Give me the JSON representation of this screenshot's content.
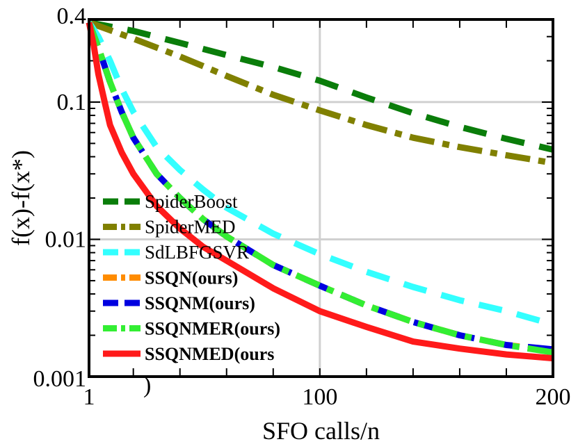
{
  "chart_data": {
    "type": "line",
    "xlabel": "SFO calls/n",
    "ylabel": "f(x)-f(x*)",
    "xlim": [
      1,
      200
    ],
    "ylim": [
      0.001,
      0.4
    ],
    "yscale": "log",
    "grid": true,
    "legend_position": "left",
    "x_ticks": [
      {
        "value": 1,
        "label": "1"
      },
      {
        "value": 100,
        "label": "100"
      },
      {
        "value": 200,
        "label": "200"
      }
    ],
    "y_ticks": [
      {
        "value": 0.4,
        "label": "0.4"
      },
      {
        "value": 0.1,
        "label": "0.1"
      },
      {
        "value": 0.01,
        "label": "0.01"
      },
      {
        "value": 0.001,
        "label": "0.001"
      }
    ],
    "stray_text": ")",
    "series": [
      {
        "name": "SpiderBoost",
        "color": "#0a7d0a",
        "dash": "long",
        "bold": false,
        "x": [
          1,
          20,
          40,
          60,
          80,
          100,
          120,
          140,
          160,
          180,
          200
        ],
        "y": [
          0.38,
          0.33,
          0.27,
          0.22,
          0.18,
          0.143,
          0.108,
          0.083,
          0.066,
          0.054,
          0.045
        ]
      },
      {
        "name": "SpiderMED",
        "color": "#808000",
        "dash": "dashdot",
        "bold": false,
        "x": [
          1,
          20,
          40,
          60,
          80,
          100,
          120,
          140,
          160,
          180,
          200
        ],
        "y": [
          0.38,
          0.29,
          0.215,
          0.155,
          0.113,
          0.087,
          0.068,
          0.055,
          0.047,
          0.041,
          0.036
        ]
      },
      {
        "name": "SdLBFGSVR",
        "color": "#33ffff",
        "dash": "long",
        "bold": false,
        "x": [
          1,
          5,
          10,
          15,
          20,
          30,
          40,
          50,
          60,
          80,
          100,
          120,
          140,
          160,
          180,
          200
        ],
        "y": [
          0.38,
          0.3,
          0.2,
          0.125,
          0.085,
          0.047,
          0.032,
          0.023,
          0.017,
          0.011,
          0.0078,
          0.0058,
          0.0045,
          0.0036,
          0.003,
          0.0024
        ]
      },
      {
        "name": "SSQN(ours)",
        "color": "#ff8c00",
        "dash": "dashdot",
        "bold": true,
        "x": [
          1,
          5,
          10,
          15,
          20,
          30,
          40,
          50,
          60,
          80,
          100,
          120,
          140,
          160,
          180,
          200
        ],
        "y": [
          0.38,
          0.25,
          0.14,
          0.085,
          0.055,
          0.03,
          0.02,
          0.014,
          0.0105,
          0.0065,
          0.0046,
          0.0033,
          0.0025,
          0.002,
          0.0017,
          0.00155
        ]
      },
      {
        "name": "SSQNM(ours)",
        "color": "#0000e0",
        "dash": "long",
        "bold": true,
        "x": [
          1,
          5,
          10,
          15,
          20,
          30,
          40,
          50,
          60,
          80,
          100,
          120,
          140,
          160,
          180,
          200
        ],
        "y": [
          0.38,
          0.25,
          0.14,
          0.085,
          0.055,
          0.03,
          0.02,
          0.014,
          0.0105,
          0.0065,
          0.0046,
          0.0033,
          0.0025,
          0.002,
          0.0017,
          0.00158
        ]
      },
      {
        "name": "SSQNMER(ours)",
        "color": "#33ee33",
        "dash": "dashdot",
        "bold": true,
        "x": [
          1,
          5,
          10,
          15,
          20,
          30,
          40,
          50,
          60,
          80,
          100,
          120,
          140,
          160,
          180,
          200
        ],
        "y": [
          0.38,
          0.25,
          0.14,
          0.085,
          0.055,
          0.03,
          0.02,
          0.014,
          0.0105,
          0.0065,
          0.0046,
          0.0033,
          0.0025,
          0.002,
          0.0017,
          0.0015
        ]
      },
      {
        "name": "SSQNMED(ours",
        "color": "#ff1a1a",
        "dash": "solid",
        "bold": true,
        "x": [
          1,
          3,
          5,
          8,
          10,
          15,
          20,
          30,
          40,
          50,
          60,
          80,
          100,
          120,
          140,
          160,
          180,
          200
        ],
        "y": [
          0.38,
          0.26,
          0.16,
          0.095,
          0.068,
          0.043,
          0.03,
          0.0175,
          0.012,
          0.0088,
          0.007,
          0.0044,
          0.003,
          0.0023,
          0.0018,
          0.0016,
          0.00145,
          0.00136
        ]
      }
    ]
  }
}
